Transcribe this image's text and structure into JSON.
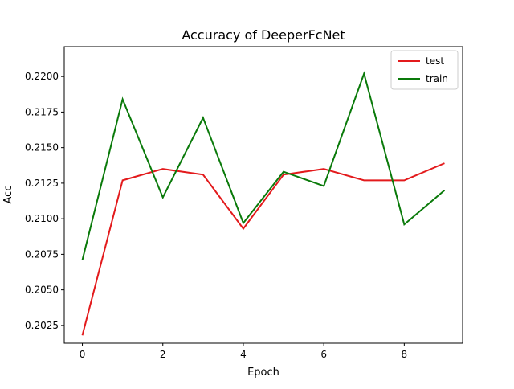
{
  "chart_data": {
    "type": "line",
    "title": "Accuracy of DeeperFcNet",
    "xlabel": "Epoch",
    "ylabel": "Acc",
    "x": [
      0,
      1,
      2,
      3,
      4,
      5,
      6,
      7,
      8,
      9
    ],
    "xticks": [
      0,
      2,
      4,
      6,
      8
    ],
    "xtick_labels": [
      "0",
      "2",
      "4",
      "6",
      "8"
    ],
    "xlim": [
      -0.45,
      9.45
    ],
    "yticks": [
      0.2025,
      0.205,
      0.2075,
      0.21,
      0.2125,
      0.215,
      0.2175,
      0.22
    ],
    "ytick_labels": [
      "0.2025",
      "0.2050",
      "0.2075",
      "0.2100",
      "0.2125",
      "0.2150",
      "0.2175",
      "0.2200"
    ],
    "ylim": [
      0.20125,
      0.2221
    ],
    "grid": false,
    "legend_position": "upper right",
    "series": [
      {
        "name": "test",
        "color": "#e31a1c",
        "values": [
          0.2018,
          0.2127,
          0.2135,
          0.2131,
          0.2093,
          0.2131,
          0.2135,
          0.2127,
          0.2127,
          0.2139
        ]
      },
      {
        "name": "train",
        "color": "#0a7a0a",
        "values": [
          0.2071,
          0.2184,
          0.2115,
          0.2171,
          0.2097,
          0.2133,
          0.2123,
          0.2202,
          0.2096,
          0.212
        ]
      }
    ]
  }
}
